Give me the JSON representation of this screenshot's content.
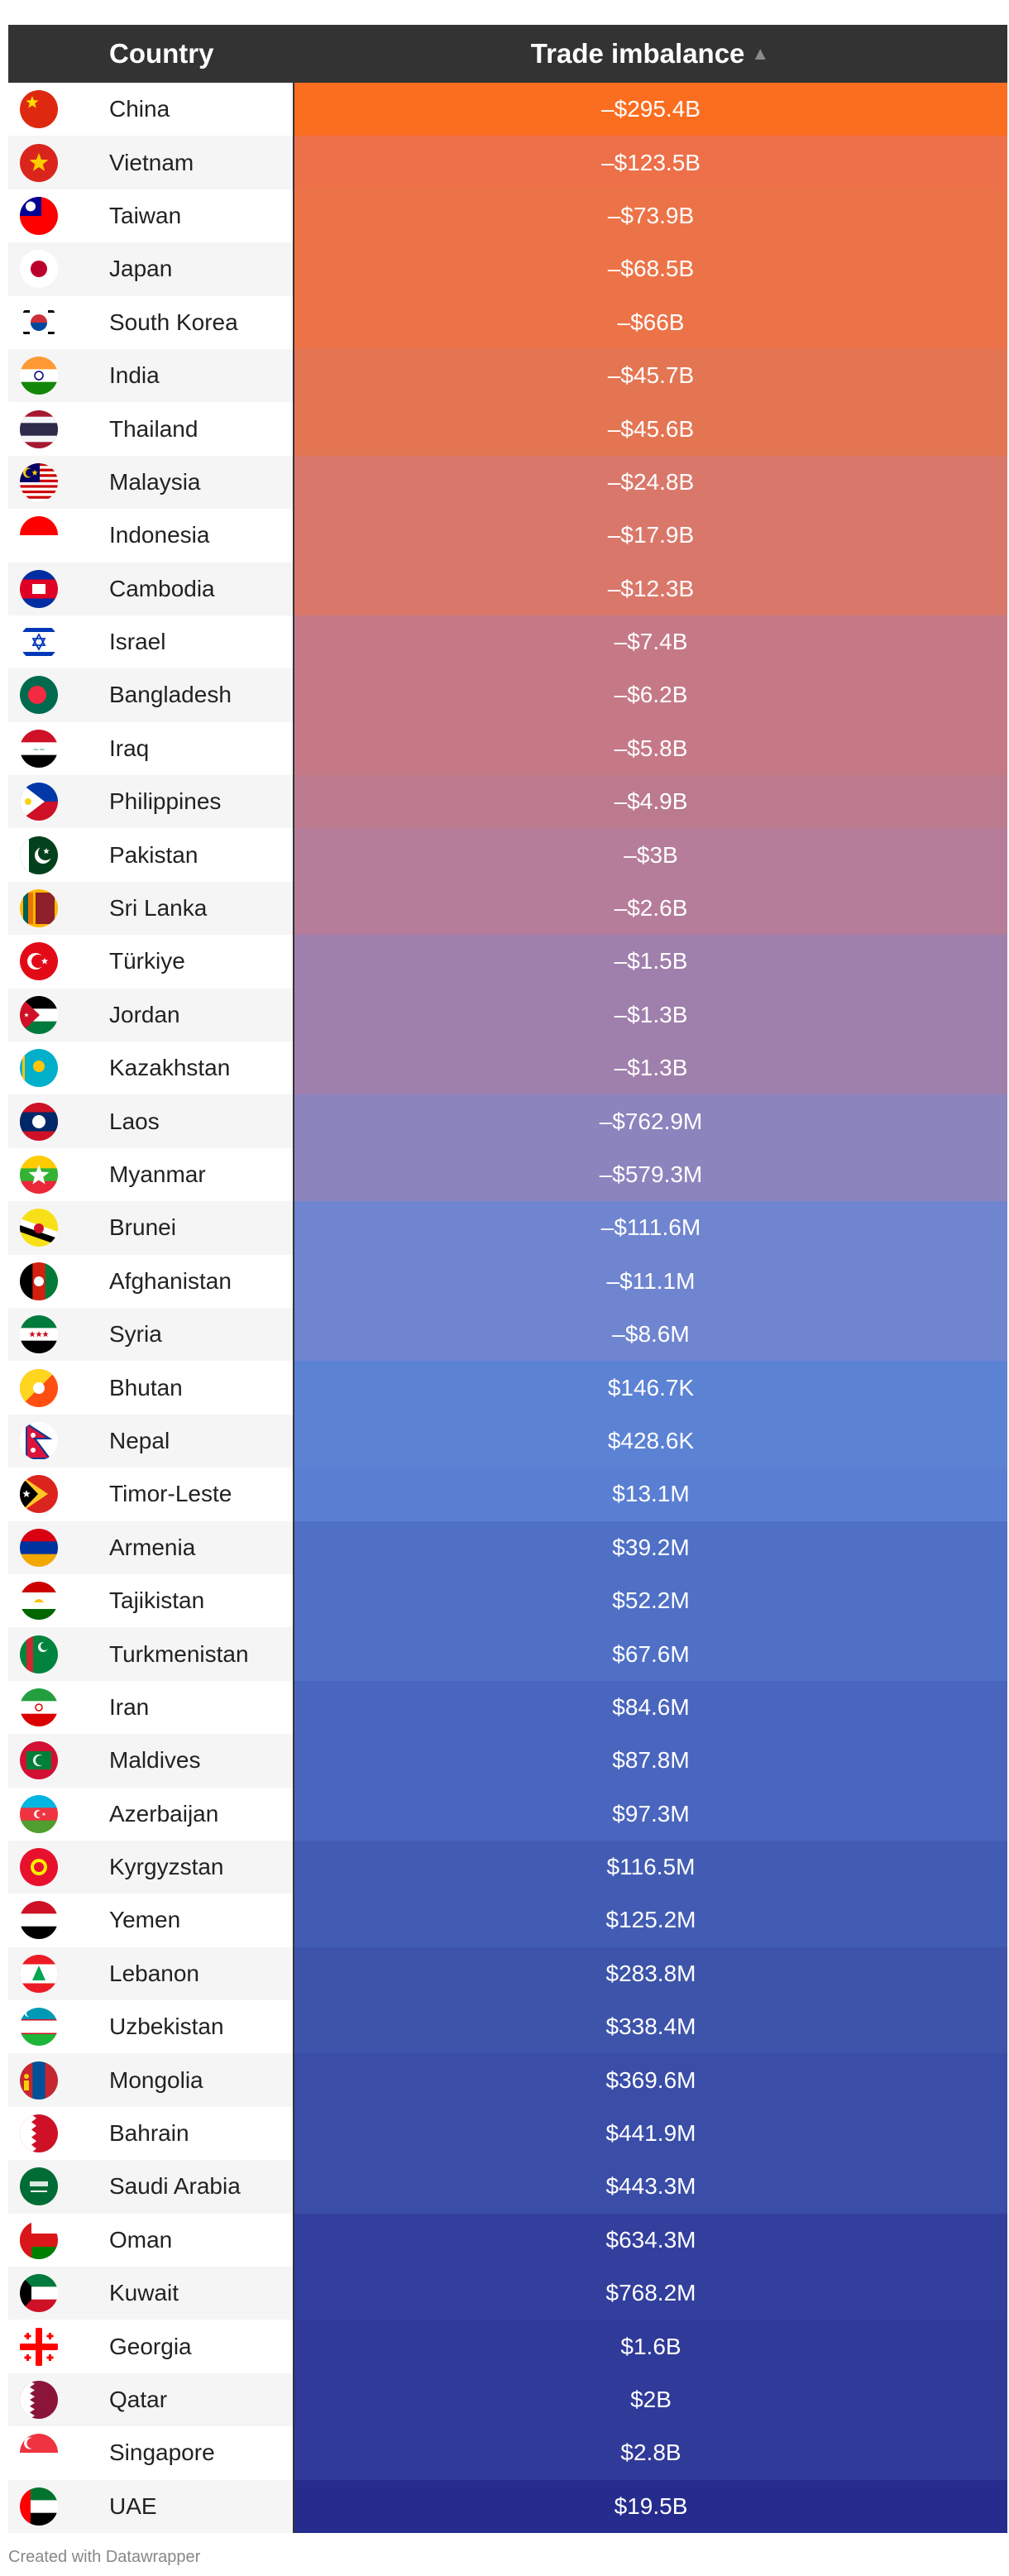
{
  "header": {
    "country": "Country",
    "value": "Trade imbalance"
  },
  "footer": "Created with Datawrapper",
  "rows": [
    {
      "country": "China",
      "value": "–$295.4B",
      "color": "#fb6d1f",
      "flag": "china-flag-icon"
    },
    {
      "country": "Vietnam",
      "value": "–$123.5B",
      "color": "#ed7048",
      "flag": "vietnam-flag-icon"
    },
    {
      "country": "Taiwan",
      "value": "–$73.9B",
      "color": "#ec7348",
      "flag": "taiwan-flag-icon"
    },
    {
      "country": "Japan",
      "value": "–$68.5B",
      "color": "#ec7348",
      "flag": "japan-flag-icon"
    },
    {
      "country": "South Korea",
      "value": "–$66B",
      "color": "#ec7348",
      "flag": "south-korea-flag-icon"
    },
    {
      "country": "India",
      "value": "–$45.7B",
      "color": "#e37553",
      "flag": "india-flag-icon"
    },
    {
      "country": "Thailand",
      "value": "–$45.6B",
      "color": "#e37553",
      "flag": "thailand-flag-icon"
    },
    {
      "country": "Malaysia",
      "value": "–$24.8B",
      "color": "#d9786a",
      "flag": "malaysia-flag-icon"
    },
    {
      "country": "Indonesia",
      "value": "–$17.9B",
      "color": "#d9786a",
      "flag": "indonesia-flag-icon"
    },
    {
      "country": "Cambodia",
      "value": "–$12.3B",
      "color": "#d9786a",
      "flag": "cambodia-flag-icon"
    },
    {
      "country": "Israel",
      "value": "–$7.4B",
      "color": "#c57987",
      "flag": "israel-flag-icon"
    },
    {
      "country": "Bangladesh",
      "value": "–$6.2B",
      "color": "#c57987",
      "flag": "bangladesh-flag-icon"
    },
    {
      "country": "Iraq",
      "value": "–$5.8B",
      "color": "#c57987",
      "flag": "iraq-flag-icon"
    },
    {
      "country": "Philippines",
      "value": "–$4.9B",
      "color": "#bb7a8e",
      "flag": "philippines-flag-icon"
    },
    {
      "country": "Pakistan",
      "value": "–$3B",
      "color": "#b57d9a",
      "flag": "pakistan-flag-icon"
    },
    {
      "country": "Sri Lanka",
      "value": "–$2.6B",
      "color": "#b57d9a",
      "flag": "sri-lanka-flag-icon"
    },
    {
      "country": "Türkiye",
      "value": "–$1.5B",
      "color": "#9f7fac",
      "flag": "turkiye-flag-icon"
    },
    {
      "country": "Jordan",
      "value": "–$1.3B",
      "color": "#9f7fac",
      "flag": "jordan-flag-icon"
    },
    {
      "country": "Kazakhstan",
      "value": "–$1.3B",
      "color": "#9f7fac",
      "flag": "kazakhstan-flag-icon"
    },
    {
      "country": "Laos",
      "value": "–$762.9M",
      "color": "#8c84bd",
      "flag": "laos-flag-icon"
    },
    {
      "country": "Myanmar",
      "value": "–$579.3M",
      "color": "#8c84bd",
      "flag": "myanmar-flag-icon"
    },
    {
      "country": "Brunei",
      "value": "–$111.6M",
      "color": "#6f85cf",
      "flag": "brunei-flag-icon"
    },
    {
      "country": "Afghanistan",
      "value": "–$11.1M",
      "color": "#6f85cf",
      "flag": "afghanistan-flag-icon"
    },
    {
      "country": "Syria",
      "value": "–$8.6M",
      "color": "#6f85cf",
      "flag": "syria-flag-icon"
    },
    {
      "country": "Bhutan",
      "value": "$146.7K",
      "color": "#5c82d4",
      "flag": "bhutan-flag-icon"
    },
    {
      "country": "Nepal",
      "value": "$428.6K",
      "color": "#5c82d4",
      "flag": "nepal-flag-icon"
    },
    {
      "country": "Timor-Leste",
      "value": "$13.1M",
      "color": "#5a7fd2",
      "flag": "timor-leste-flag-icon"
    },
    {
      "country": "Armenia",
      "value": "$39.2M",
      "color": "#4f70c5",
      "flag": "armenia-flag-icon"
    },
    {
      "country": "Tajikistan",
      "value": "$52.2M",
      "color": "#4f70c5",
      "flag": "tajikistan-flag-icon"
    },
    {
      "country": "Turkmenistan",
      "value": "$67.6M",
      "color": "#4f70c5",
      "flag": "turkmenistan-flag-icon"
    },
    {
      "country": "Iran",
      "value": "$84.6M",
      "color": "#4a65bd",
      "flag": "iran-flag-icon"
    },
    {
      "country": "Maldives",
      "value": "$87.8M",
      "color": "#4a65bd",
      "flag": "maldives-flag-icon"
    },
    {
      "country": "Azerbaijan",
      "value": "$97.3M",
      "color": "#4a65bd",
      "flag": "azerbaijan-flag-icon"
    },
    {
      "country": "Kyrgyzstan",
      "value": "$116.5M",
      "color": "#435cb3",
      "flag": "kyrgyzstan-flag-icon"
    },
    {
      "country": "Yemen",
      "value": "$125.2M",
      "color": "#435cb3",
      "flag": "yemen-flag-icon"
    },
    {
      "country": "Lebanon",
      "value": "$283.8M",
      "color": "#3d54aa",
      "flag": "lebanon-flag-icon"
    },
    {
      "country": "Uzbekistan",
      "value": "$338.4M",
      "color": "#3d54aa",
      "flag": "uzbekistan-flag-icon"
    },
    {
      "country": "Mongolia",
      "value": "$369.6M",
      "color": "#3a4da7",
      "flag": "mongolia-flag-icon"
    },
    {
      "country": "Bahrain",
      "value": "$441.9M",
      "color": "#3a4da7",
      "flag": "bahrain-flag-icon"
    },
    {
      "country": "Saudi Arabia",
      "value": "$443.3M",
      "color": "#3a4da7",
      "flag": "saudi-arabia-flag-icon"
    },
    {
      "country": "Oman",
      "value": "$634.3M",
      "color": "#333f9d",
      "flag": "oman-flag-icon"
    },
    {
      "country": "Kuwait",
      "value": "$768.2M",
      "color": "#333f9d",
      "flag": "kuwait-flag-icon"
    },
    {
      "country": "Georgia",
      "value": "$1.6B",
      "color": "#303a99",
      "flag": "georgia-flag-icon"
    },
    {
      "country": "Qatar",
      "value": "$2B",
      "color": "#303a99",
      "flag": "qatar-flag-icon"
    },
    {
      "country": "Singapore",
      "value": "$2.8B",
      "color": "#303a99",
      "flag": "singapore-flag-icon"
    },
    {
      "country": "UAE",
      "value": "$19.5B",
      "color": "#262c8d",
      "flag": "uae-flag-icon"
    }
  ]
}
